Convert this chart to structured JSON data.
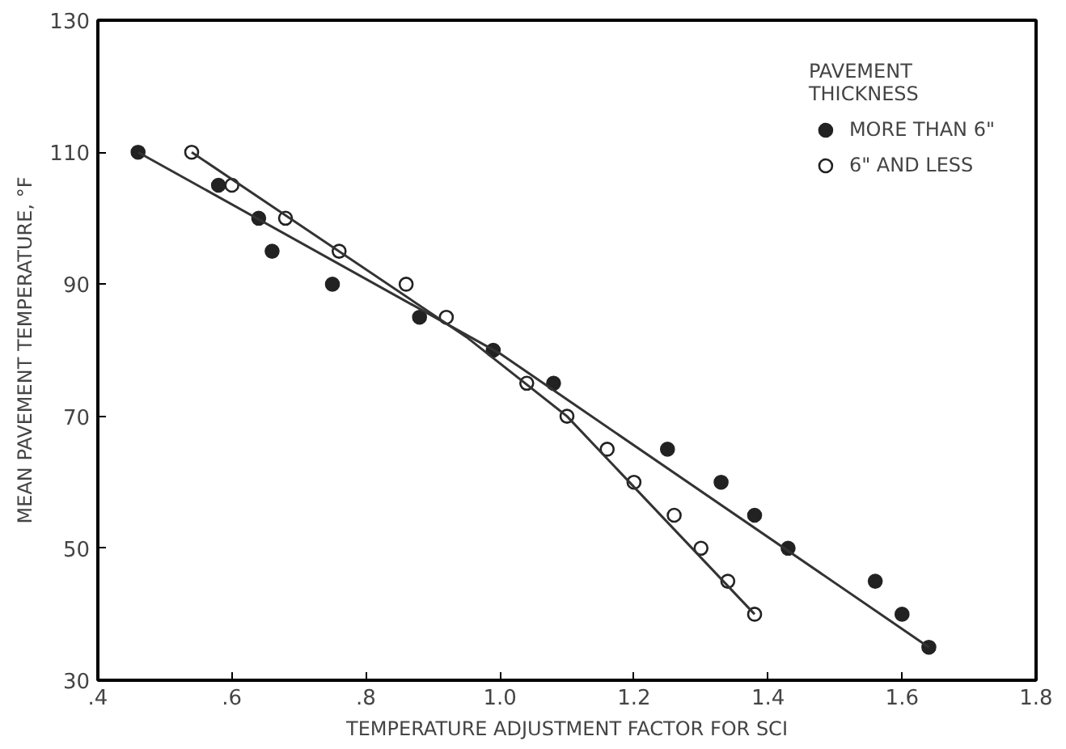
{
  "chart_data": {
    "type": "scatter",
    "xlabel": "TEMPERATURE ADJUSTMENT FACTOR FOR SCI",
    "ylabel": "MEAN PAVEMENT TEMPERATURE, °F",
    "legend_title": "PAVEMENT\nTHICKNESS",
    "legend": "top right",
    "grid": false,
    "xlim": [
      0.4,
      1.8
    ],
    "ylim": [
      30,
      130
    ],
    "xticks": [
      {
        "value": 0.4,
        "label": ".4"
      },
      {
        "value": 0.6,
        "label": ".6"
      },
      {
        "value": 0.8,
        "label": ".8"
      },
      {
        "value": 1.0,
        "label": "1.0"
      },
      {
        "value": 1.2,
        "label": "1.2"
      },
      {
        "value": 1.4,
        "label": "1.4"
      },
      {
        "value": 1.6,
        "label": "1.6"
      },
      {
        "value": 1.8,
        "label": "1.8"
      }
    ],
    "yticks": [
      30,
      50,
      70,
      90,
      110,
      130
    ],
    "series": [
      {
        "name": "MORE THAN 6\"",
        "marker": "circle",
        "color": "#222222",
        "x": [
          0.46,
          0.58,
          0.64,
          0.66,
          0.75,
          0.88,
          0.99,
          1.08,
          1.25,
          1.33,
          1.38,
          1.43,
          1.56,
          1.6,
          1.64
        ],
        "values": [
          110,
          105,
          100,
          95,
          90,
          85,
          80,
          75,
          65,
          60,
          55,
          50,
          45,
          40,
          35
        ]
      },
      {
        "name": "6\" AND LESS",
        "marker": "circle",
        "color": "#222222",
        "x": [
          0.54,
          0.6,
          0.68,
          0.76,
          0.86,
          0.92,
          1.04,
          1.1,
          1.16,
          1.2,
          1.26,
          1.3,
          1.34,
          1.38
        ],
        "values": [
          110,
          105,
          100,
          95,
          90,
          85,
          75,
          70,
          65,
          60,
          55,
          50,
          45,
          40
        ]
      },
      {
        "type": "line",
        "color": "#333333",
        "x": [
          0.46,
          1.0,
          1.64
        ],
        "values": [
          110,
          79.5,
          35
        ]
      },
      {
        "type": "line",
        "color": "#333333",
        "x": [
          0.54,
          0.95,
          1.1,
          1.38
        ],
        "values": [
          110,
          82,
          70,
          40
        ]
      }
    ]
  }
}
